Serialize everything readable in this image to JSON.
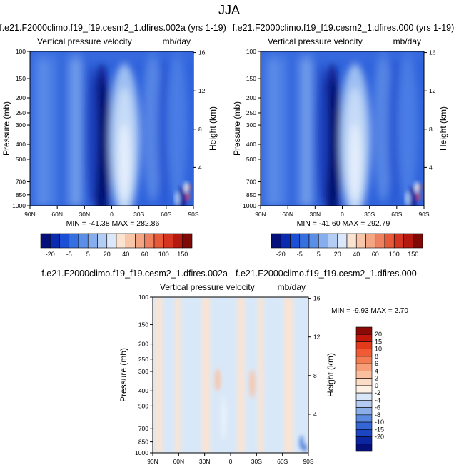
{
  "page_title": "JJA",
  "chart_data": [
    {
      "type": "heatmap",
      "title": "f.e21.F2000climo.f19_f19.cesm2_1.dfires.002a (yrs 1-19)",
      "left_subtitle": "Vertical pressure velocity",
      "right_subtitle": "mb/day",
      "ylabel": "Pressure (mb)",
      "ylabel_right": "Height (km)",
      "x_ticks": [
        "90N",
        "60N",
        "30N",
        "0",
        "30S",
        "60S",
        "90S"
      ],
      "x_values": [
        90,
        60,
        30,
        0,
        -30,
        -60,
        -90
      ],
      "y_ticks": [
        "100",
        "150",
        "200",
        "250",
        "300",
        "400",
        "500",
        "700",
        "850",
        "1000"
      ],
      "y_values": [
        100,
        150,
        200,
        250,
        300,
        400,
        500,
        700,
        850,
        1000
      ],
      "y_right_ticks": [
        "16",
        "12",
        "8",
        "4"
      ],
      "y_right_values": [
        16,
        12,
        8,
        4
      ],
      "ylim": [
        1000,
        100
      ],
      "y_scale": "log",
      "min_label": "MIN = -41.38",
      "max_label": "MAX = 282.86",
      "colorbar_labels": [
        "-20",
        "-5",
        "5",
        "20",
        "40",
        "60",
        "100",
        "150"
      ],
      "colorbar_colors": [
        "#05107a",
        "#0a2bb0",
        "#1a4fd6",
        "#3670e0",
        "#5b8ee6",
        "#86aeee",
        "#b4cdf5",
        "#dbe8fb",
        "#fbe3d2",
        "#f8c6a8",
        "#f4a584",
        "#ef8060",
        "#e65a3a",
        "#d53520",
        "#b5180e",
        "#7f0a05"
      ],
      "field": "mean"
    },
    {
      "type": "heatmap",
      "title": "f.e21.F2000climo.f19_f19.cesm2_1.dfires.000 (yrs 1-19)",
      "left_subtitle": "Vertical pressure velocity",
      "right_subtitle": "mb/day",
      "ylabel": "Pressure (mb)",
      "ylabel_right": "Height (km)",
      "x_ticks": [
        "90N",
        "60N",
        "30N",
        "0",
        "30S",
        "60S",
        "90S"
      ],
      "x_values": [
        90,
        60,
        30,
        0,
        -30,
        -60,
        -90
      ],
      "y_ticks": [
        "100",
        "150",
        "200",
        "250",
        "300",
        "400",
        "500",
        "700",
        "850",
        "1000"
      ],
      "y_values": [
        100,
        150,
        200,
        250,
        300,
        400,
        500,
        700,
        850,
        1000
      ],
      "y_right_ticks": [
        "16",
        "12",
        "8",
        "4"
      ],
      "y_right_values": [
        16,
        12,
        8,
        4
      ],
      "ylim": [
        1000,
        100
      ],
      "y_scale": "log",
      "min_label": "MIN = -41.60",
      "max_label": "MAX = 292.79",
      "colorbar_labels": [
        "-20",
        "-5",
        "5",
        "20",
        "40",
        "60",
        "100",
        "150"
      ],
      "colorbar_colors": [
        "#05107a",
        "#0a2bb0",
        "#1a4fd6",
        "#3670e0",
        "#5b8ee6",
        "#86aeee",
        "#b4cdf5",
        "#dbe8fb",
        "#fbe3d2",
        "#f8c6a8",
        "#f4a584",
        "#ef8060",
        "#e65a3a",
        "#d53520",
        "#b5180e",
        "#7f0a05"
      ],
      "field": "mean"
    },
    {
      "type": "heatmap",
      "title": "f.e21.F2000climo.f19_f19.cesm2_1.dfires.002a - f.e21.F2000climo.f19_f19.cesm2_1.dfires.000",
      "left_subtitle": "Vertical pressure velocity",
      "right_subtitle": "mb/day",
      "ylabel": "Pressure (mb)",
      "ylabel_right": "Height (km)",
      "x_ticks": [
        "90N",
        "60N",
        "30N",
        "0",
        "30S",
        "60S",
        "90S"
      ],
      "x_values": [
        90,
        60,
        30,
        0,
        -30,
        -60,
        -90
      ],
      "y_ticks": [
        "100",
        "150",
        "200",
        "250",
        "300",
        "400",
        "500",
        "700",
        "850",
        "1000"
      ],
      "y_values": [
        100,
        150,
        200,
        250,
        300,
        400,
        500,
        700,
        850,
        1000
      ],
      "y_right_ticks": [
        "16",
        "12",
        "8",
        "4"
      ],
      "y_right_values": [
        16,
        12,
        8,
        4
      ],
      "ylim": [
        1000,
        100
      ],
      "y_scale": "log",
      "min_label": "MIN = -9.93",
      "max_label": "MAX =  2.70",
      "colorbar_labels": [
        "20",
        "15",
        "10",
        "8",
        "6",
        "4",
        "2",
        "0",
        "-2",
        "-4",
        "-6",
        "-8",
        "-10",
        "-15",
        "-20"
      ],
      "colorbar_colors": [
        "#8b0a05",
        "#c4170b",
        "#e43a1c",
        "#f05a34",
        "#f47c52",
        "#f79e78",
        "#f9bf9f",
        "#fbdcc6",
        "#fdf0e4",
        "#d8e6f7",
        "#b3cbf0",
        "#8aaee8",
        "#5b8ae0",
        "#3566d6",
        "#1c45c4",
        "#0b26a0",
        "#040f78"
      ],
      "field": "difference"
    }
  ]
}
